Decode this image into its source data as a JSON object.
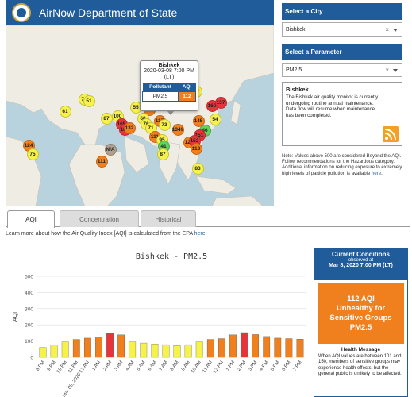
{
  "header": {
    "title": "AirNow Department of State"
  },
  "map": {
    "popup": {
      "city": "Bishkek",
      "date": "2020-03-08 7:00 PM (LT)",
      "col_pollutant": "Pollutant",
      "col_aqi": "AQI",
      "pollutant": "PM2.5",
      "aqi": "112"
    },
    "markers": [
      {
        "label": "71",
        "color": "#f7f24a"
      },
      {
        "label": "51",
        "color": "#f7f24a"
      },
      {
        "label": "61",
        "color": "#f7f24a"
      },
      {
        "label": "87",
        "color": "#f7f24a"
      },
      {
        "label": "100",
        "color": "#f7f24a"
      },
      {
        "label": "55",
        "color": "#f7f24a"
      },
      {
        "label": "128",
        "color": "#f07f1e"
      },
      {
        "label": "103",
        "color": "#f07f1e"
      },
      {
        "label": "122",
        "color": "#f07f1e"
      },
      {
        "label": "165",
        "color": "#e8333b"
      },
      {
        "label": "184",
        "color": "#e8333b"
      },
      {
        "label": "132",
        "color": "#f07f1e"
      },
      {
        "label": "68",
        "color": "#f7f24a"
      },
      {
        "label": "117",
        "color": "#f07f1e"
      },
      {
        "label": "76",
        "color": "#f7f24a"
      },
      {
        "label": "73",
        "color": "#f7f24a"
      },
      {
        "label": "71",
        "color": "#f7f24a"
      },
      {
        "label": "111",
        "color": "#f07f1e"
      },
      {
        "label": "95",
        "color": "#f7f24a"
      },
      {
        "label": "41",
        "color": "#5fd35a"
      },
      {
        "label": "87",
        "color": "#f7f24a"
      },
      {
        "label": "87",
        "color": "#f7f24a"
      },
      {
        "label": "169",
        "color": "#e8333b"
      },
      {
        "label": "157",
        "color": "#e8333b"
      },
      {
        "label": "145",
        "color": "#f07f1e"
      },
      {
        "label": "1349",
        "color": "#f07f1e"
      },
      {
        "label": "46",
        "color": "#5fd35a"
      },
      {
        "label": "54",
        "color": "#f7f24a"
      },
      {
        "label": "151",
        "color": "#e8333b"
      },
      {
        "label": "121",
        "color": "#f07f1e"
      },
      {
        "label": "152",
        "color": "#e8333b"
      },
      {
        "label": "113",
        "color": "#f07f1e"
      },
      {
        "label": "124",
        "color": "#f07f1e"
      },
      {
        "label": "75",
        "color": "#f7f24a"
      },
      {
        "label": "N/A",
        "color": "#b0a090"
      },
      {
        "label": "111",
        "color": "#f07f1e"
      },
      {
        "label": "83",
        "color": "#f7f24a"
      }
    ]
  },
  "right": {
    "city_label": "Select a City",
    "city_value": "Bishkek",
    "param_label": "Select a Parameter",
    "param_value": "PM2.5",
    "info_title": "Bishkek",
    "info_text": "The Bishkek air quality monitor is currently undergoing routine annual maintenance. Data flow will resume when maintenance has been completed.",
    "note_text": "Note: Values above 500 are considered Beyond the AQI. Follow recommendations for the Hazardous category. Additional information on reducing exposure to extremely high levels of particle pollution is available ",
    "note_link": "here",
    "note_end": "."
  },
  "tabs": [
    {
      "label": "AQI"
    },
    {
      "label": "Concentration"
    },
    {
      "label": "Historical"
    }
  ],
  "learn": {
    "text": "Learn more about how the Air Quality Index [AQI] is calculated from the EPA ",
    "link": "here",
    "end": "."
  },
  "chart_data": {
    "type": "bar",
    "title": "Bishkek - PM2.5",
    "ylabel": "AQI",
    "ylim": [
      0,
      500
    ],
    "yticks": [
      0,
      100,
      200,
      300,
      400,
      500
    ],
    "categories": [
      "8 PM",
      "9 PM",
      "10 PM",
      "11 PM",
      "Mar 08, 2020 12 AM",
      "1 AM",
      "2 AM",
      "3 AM",
      "4 AM",
      "5 AM",
      "6 AM",
      "7 AM",
      "8 AM",
      "9 AM",
      "10 AM",
      "11 AM",
      "12 PM",
      "1 PM",
      "2 PM",
      "3 PM",
      "4 PM",
      "5 PM",
      "6 PM",
      "7 PM"
    ],
    "values": [
      60,
      75,
      95,
      110,
      118,
      125,
      150,
      138,
      95,
      88,
      82,
      78,
      72,
      78,
      95,
      110,
      115,
      138,
      152,
      140,
      128,
      118,
      115,
      112
    ],
    "colors": [
      "#f7f24a",
      "#f7f24a",
      "#f7f24a",
      "#f07f1e",
      "#f07f1e",
      "#f07f1e",
      "#e8333b",
      "#f07f1e",
      "#f7f24a",
      "#f7f24a",
      "#f7f24a",
      "#f7f24a",
      "#f7f24a",
      "#f7f24a",
      "#f7f24a",
      "#f07f1e",
      "#f07f1e",
      "#f07f1e",
      "#e8333b",
      "#f07f1e",
      "#f07f1e",
      "#f07f1e",
      "#f07f1e",
      "#f07f1e"
    ],
    "grid": true
  },
  "conditions": {
    "title": "Current Conditions",
    "observed": "observed at",
    "date": "Mar 8, 2020 7:00 PM (LT)",
    "aqi_line": "112 AQI",
    "category": "Unhealthy for Sensitive Groups",
    "pollutant": "PM2.5",
    "msg_title": "Health Message",
    "msg": "When AQI values are between 101 and 150, members of sensitive groups may experience health effects, but the general public is unlikely to be affected."
  }
}
